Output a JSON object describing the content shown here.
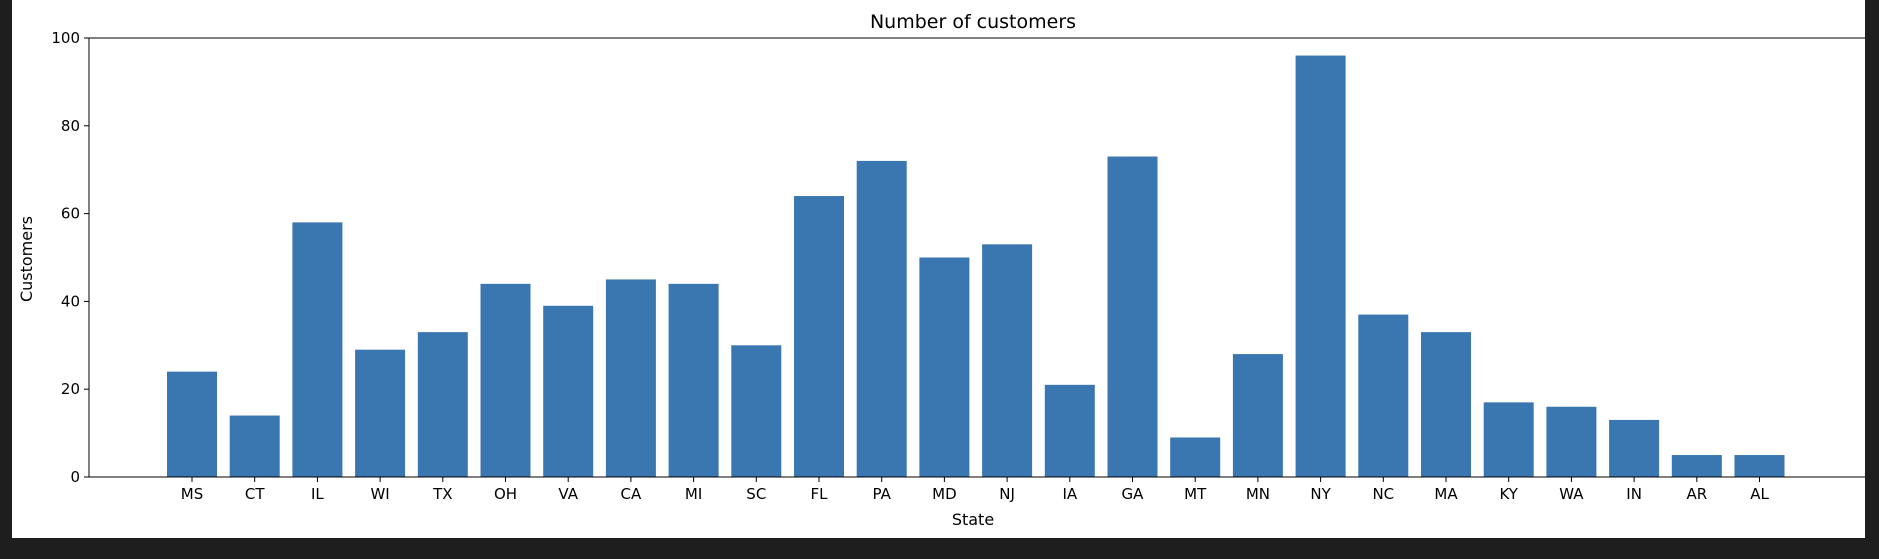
{
  "chart_data": {
    "type": "bar",
    "title": "Number of customers",
    "xlabel": "State",
    "ylabel": "Customers",
    "categories": [
      "MS",
      "CT",
      "IL",
      "WI",
      "TX",
      "OH",
      "VA",
      "CA",
      "MI",
      "SC",
      "FL",
      "PA",
      "MD",
      "NJ",
      "IA",
      "GA",
      "MT",
      "MN",
      "NY",
      "NC",
      "MA",
      "KY",
      "WA",
      "IN",
      "AR",
      "AL"
    ],
    "values": [
      24,
      14,
      58,
      29,
      33,
      44,
      39,
      45,
      44,
      30,
      64,
      72,
      50,
      53,
      21,
      73,
      9,
      28,
      96,
      37,
      33,
      17,
      16,
      13,
      5,
      5
    ],
    "ylim": [
      0,
      100
    ],
    "yticks": [
      0,
      20,
      40,
      60,
      80,
      100
    ],
    "grid": false,
    "bar_color": "#3a76b0"
  }
}
